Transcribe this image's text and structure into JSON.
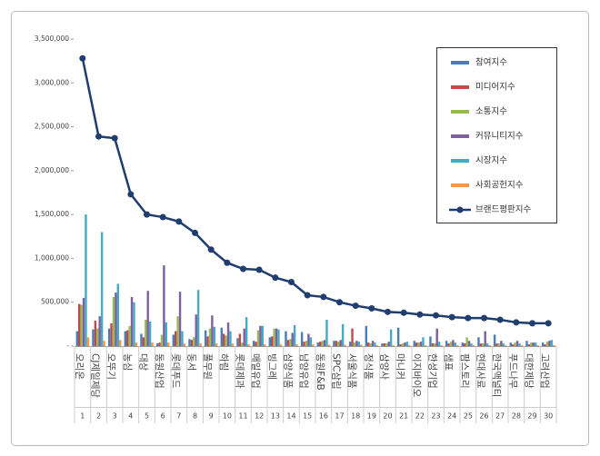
{
  "chart_data": {
    "type": "bar_line",
    "categories": [
      "오리온",
      "CJ제일제당",
      "오뚜기",
      "농심",
      "대상",
      "동원산업",
      "롯데푸드",
      "동서",
      "풀무원",
      "하림",
      "롯데제과",
      "매일유업",
      "빙그레",
      "삼양식품",
      "남양유업",
      "동원F&B",
      "SPC삼립",
      "서울식품",
      "정식품",
      "삼양사",
      "마니커",
      "이지바이오",
      "한성기업",
      "샘표",
      "팜스토리",
      "현대사료",
      "한국맥널티",
      "푸드나무",
      "대한제당",
      "고려산업"
    ],
    "ranks": [
      1,
      2,
      3,
      4,
      5,
      6,
      7,
      8,
      9,
      10,
      11,
      12,
      13,
      14,
      15,
      16,
      17,
      18,
      19,
      20,
      21,
      22,
      23,
      24,
      25,
      26,
      27,
      28,
      29,
      30
    ],
    "ylim": [
      0,
      3500000
    ],
    "yticks": [
      {
        "value": 0,
        "label": "-"
      },
      {
        "value": 500000,
        "label": "500,000"
      },
      {
        "value": 1000000,
        "label": "1,000,000"
      },
      {
        "value": 1500000,
        "label": "1,500,000"
      },
      {
        "value": 2000000,
        "label": "2,000,000"
      },
      {
        "value": 2500000,
        "label": "2,500,000"
      },
      {
        "value": 3000000,
        "label": "3,000,000"
      },
      {
        "value": 3500000,
        "label": "3,500,000"
      }
    ],
    "series": [
      {
        "name": "참여지수",
        "color": "#4a7ebb",
        "kind": "bar",
        "values": [
          170000,
          190000,
          200000,
          170000,
          140000,
          30000,
          130000,
          80000,
          180000,
          210000,
          90000,
          60000,
          100000,
          170000,
          160000,
          40000,
          60000,
          50000,
          230000,
          30000,
          210000,
          60000,
          110000,
          60000,
          40000,
          100000,
          130000,
          40000,
          60000,
          40000
        ]
      },
      {
        "name": "미디어지수",
        "color": "#be4b48",
        "kind": "bar",
        "values": [
          480000,
          290000,
          260000,
          180000,
          100000,
          40000,
          170000,
          70000,
          110000,
          140000,
          140000,
          50000,
          110000,
          70000,
          50000,
          50000,
          60000,
          200000,
          40000,
          30000,
          20000,
          40000,
          30000,
          30000,
          30000,
          30000,
          30000,
          20000,
          20000,
          20000
        ]
      },
      {
        "name": "소통지수",
        "color": "#98b954",
        "kind": "bar",
        "values": [
          470000,
          200000,
          560000,
          230000,
          300000,
          130000,
          340000,
          100000,
          200000,
          120000,
          40000,
          180000,
          200000,
          80000,
          60000,
          60000,
          50000,
          40000,
          30000,
          30000,
          30000,
          40000,
          30000,
          50000,
          100000,
          30000,
          30000,
          40000,
          40000,
          50000
        ]
      },
      {
        "name": "커뮤니티지수",
        "color": "#7d60a0",
        "kind": "bar",
        "values": [
          550000,
          340000,
          610000,
          560000,
          630000,
          920000,
          620000,
          360000,
          350000,
          270000,
          200000,
          230000,
          200000,
          150000,
          140000,
          70000,
          70000,
          60000,
          60000,
          50000,
          40000,
          50000,
          200000,
          70000,
          60000,
          170000,
          60000,
          60000,
          40000,
          60000
        ]
      },
      {
        "name": "시장지수",
        "color": "#46aac5",
        "kind": "bar",
        "values": [
          1500000,
          1300000,
          710000,
          500000,
          280000,
          270000,
          170000,
          640000,
          220000,
          170000,
          330000,
          230000,
          190000,
          240000,
          100000,
          300000,
          250000,
          50000,
          40000,
          190000,
          50000,
          100000,
          50000,
          40000,
          30000,
          30000,
          30000,
          30000,
          40000,
          70000
        ]
      },
      {
        "name": "사회공헌지수",
        "color": "#f79646",
        "kind": "bar",
        "values": [
          100000,
          60000,
          70000,
          40000,
          40000,
          40000,
          30000,
          30000,
          30000,
          30000,
          20000,
          20000,
          20000,
          20000,
          20000,
          15000,
          15000,
          15000,
          10000,
          10000,
          10000,
          10000,
          10000,
          10000,
          10000,
          10000,
          10000,
          10000,
          10000,
          10000
        ]
      },
      {
        "name": "브랜드평판지수",
        "color": "#1f3d6e",
        "kind": "line",
        "values": [
          3280000,
          2390000,
          2370000,
          1730000,
          1500000,
          1470000,
          1420000,
          1290000,
          1100000,
          950000,
          880000,
          870000,
          780000,
          730000,
          580000,
          560000,
          500000,
          460000,
          430000,
          390000,
          380000,
          360000,
          350000,
          330000,
          320000,
          320000,
          300000,
          270000,
          260000,
          260000
        ]
      }
    ]
  }
}
